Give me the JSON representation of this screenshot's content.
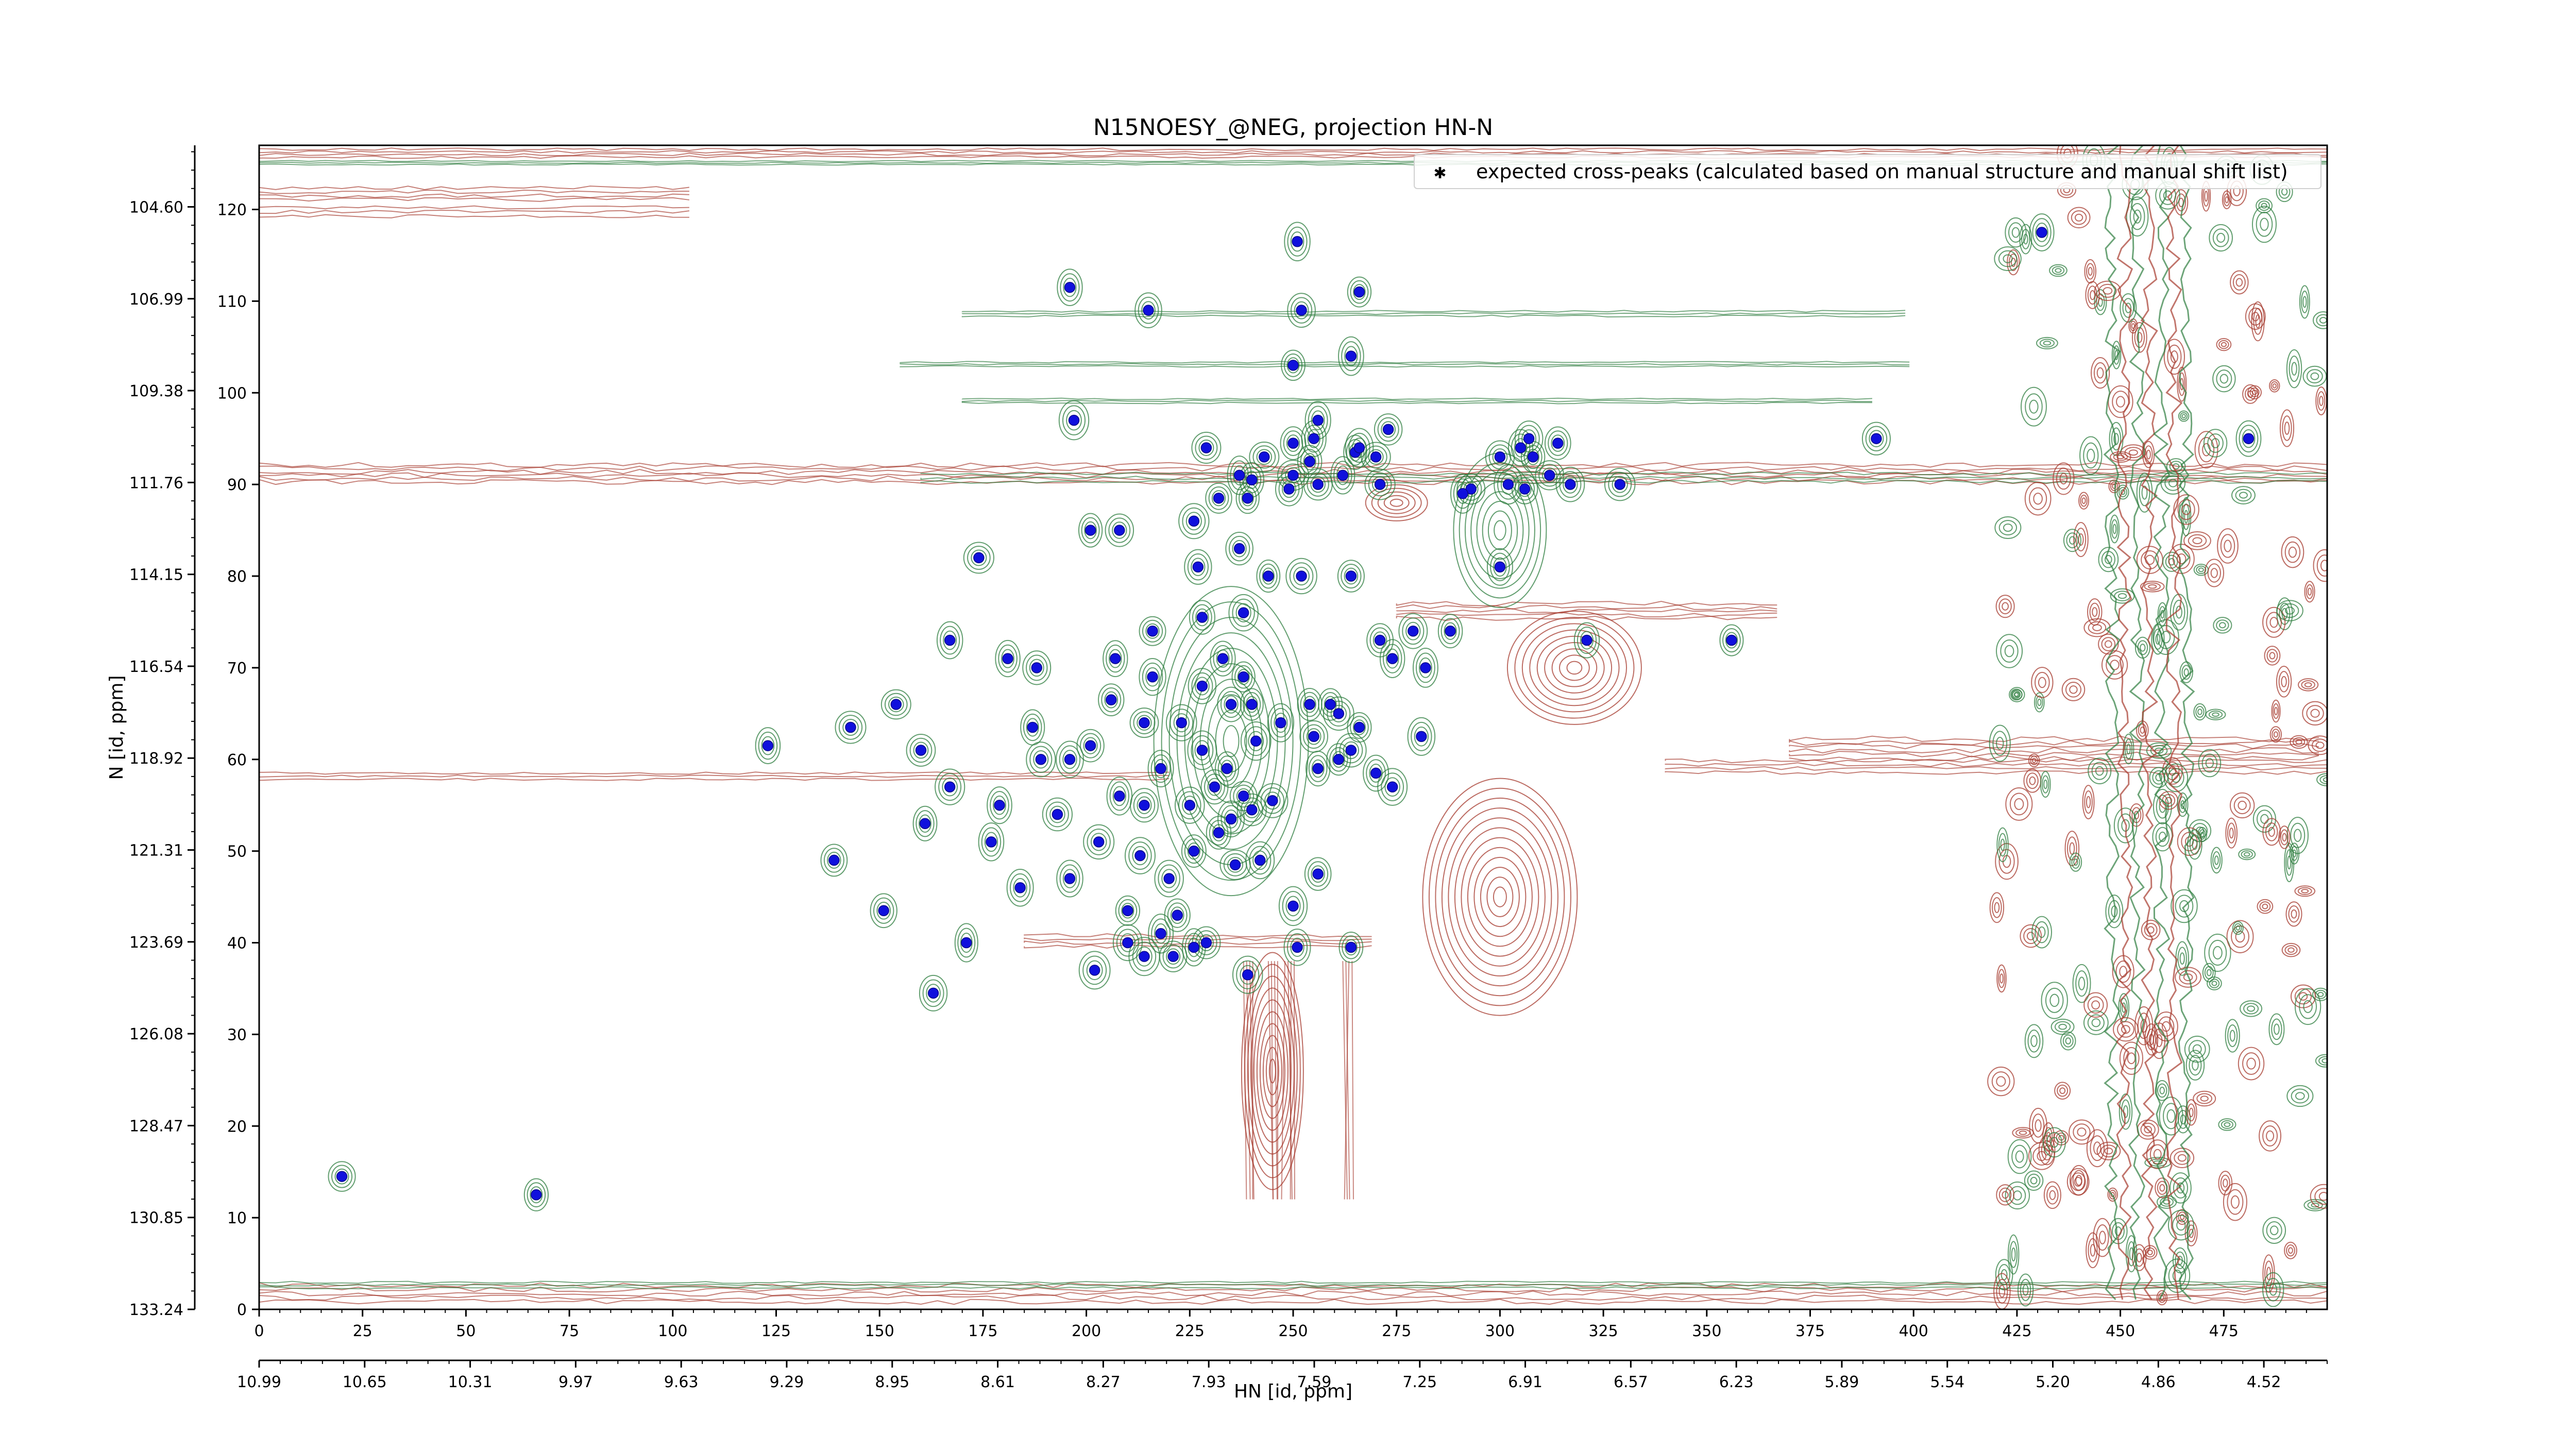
{
  "chart_data": {
    "type": "scatter",
    "title": "N15NOESY_@NEG, projection HN-N",
    "xlabel": "HN [id, ppm]",
    "ylabel": "N [id, ppm]",
    "xlim": [
      0,
      500
    ],
    "ylim": [
      0,
      127
    ],
    "x_ticks": [
      0,
      25,
      50,
      75,
      100,
      125,
      150,
      175,
      200,
      225,
      250,
      275,
      300,
      325,
      350,
      375,
      400,
      425,
      450,
      475
    ],
    "y_ticks": [
      0,
      10,
      20,
      30,
      40,
      50,
      60,
      70,
      80,
      90,
      100,
      110,
      120
    ],
    "x_ppm_ticks": [
      "10.99",
      "10.65",
      "10.31",
      "9.97",
      "9.63",
      "9.29",
      "8.95",
      "8.61",
      "8.27",
      "7.93",
      "7.59",
      "7.25",
      "6.91",
      "6.57",
      "6.23",
      "5.89",
      "5.54",
      "5.20",
      "4.86",
      "4.52"
    ],
    "y_ppm_ticks": [
      "133.24",
      "130.85",
      "128.47",
      "126.08",
      "123.69",
      "121.31",
      "118.92",
      "116.54",
      "114.15",
      "111.76",
      "109.38",
      "106.99",
      "104.60"
    ],
    "legend": {
      "position": "upper-right",
      "label": "expected cross-peaks (calculated based on manual structure and manual shift list)"
    },
    "colors": {
      "positive_contour": "#2e7d3f",
      "negative_contour": "#a63a2e",
      "marker": "#1010dd"
    },
    "series": [
      {
        "name": "expected cross-peaks (calculated based on manual structure and manual shift list)",
        "points": [
          [
            20,
            14.5
          ],
          [
            67,
            12.5
          ],
          [
            163,
            34.5
          ],
          [
            171,
            40
          ],
          [
            151,
            43.5
          ],
          [
            139,
            49
          ],
          [
            184,
            46
          ],
          [
            161,
            53
          ],
          [
            167,
            57
          ],
          [
            179,
            55
          ],
          [
            177,
            51
          ],
          [
            160,
            61
          ],
          [
            154,
            66
          ],
          [
            143,
            63.5
          ],
          [
            123,
            61.5
          ],
          [
            167,
            73
          ],
          [
            181,
            71
          ],
          [
            188,
            70
          ],
          [
            174,
            82
          ],
          [
            196,
            47
          ],
          [
            193,
            54
          ],
          [
            196,
            60
          ],
          [
            203,
            51
          ],
          [
            187,
            63.5
          ],
          [
            189,
            60
          ],
          [
            201,
            61.5
          ],
          [
            206,
            66.5
          ],
          [
            207,
            71
          ],
          [
            216,
            74
          ],
          [
            216,
            69
          ],
          [
            214,
            64
          ],
          [
            218,
            59
          ],
          [
            214,
            55
          ],
          [
            225,
            55
          ],
          [
            208,
            56
          ],
          [
            213,
            49.5
          ],
          [
            226,
            50
          ],
          [
            220,
            47
          ],
          [
            232,
            52
          ],
          [
            231,
            57
          ],
          [
            228,
            61
          ],
          [
            223,
            64
          ],
          [
            228,
            68
          ],
          [
            233,
            71
          ],
          [
            235,
            66
          ],
          [
            240,
            66
          ],
          [
            238,
            69
          ],
          [
            241,
            62
          ],
          [
            234,
            59
          ],
          [
            238,
            56
          ],
          [
            235,
            53.5
          ],
          [
            240,
            54.5
          ],
          [
            245,
            55.5
          ],
          [
            236,
            48.5
          ],
          [
            242,
            49
          ],
          [
            239,
            36.5
          ],
          [
            226,
            39.5
          ],
          [
            222,
            43
          ],
          [
            218,
            41
          ],
          [
            214,
            38.5
          ],
          [
            221,
            38.5
          ],
          [
            210,
            43.5
          ],
          [
            229,
            40
          ],
          [
            210,
            40
          ],
          [
            202,
            37
          ],
          [
            251,
            39.5
          ],
          [
            264,
            39.5
          ],
          [
            250,
            44
          ],
          [
            256,
            47.5
          ],
          [
            256,
            59
          ],
          [
            261,
            60
          ],
          [
            255,
            62.5
          ],
          [
            247,
            64
          ],
          [
            254,
            66
          ],
          [
            259,
            66
          ],
          [
            261,
            65
          ],
          [
            266,
            63.5
          ],
          [
            270,
            58.5
          ],
          [
            274,
            57
          ],
          [
            281,
            62.5
          ],
          [
            264,
            61
          ],
          [
            264,
            80
          ],
          [
            252,
            80
          ],
          [
            244,
            80
          ],
          [
            227,
            81
          ],
          [
            237,
            83
          ],
          [
            238,
            76
          ],
          [
            228,
            75.5
          ],
          [
            226,
            86
          ],
          [
            232,
            88.5
          ],
          [
            239,
            88.5
          ],
          [
            237,
            91
          ],
          [
            229,
            94
          ],
          [
            240,
            90.5
          ],
          [
            249,
            89.5
          ],
          [
            243,
            93
          ],
          [
            250,
            91
          ],
          [
            250,
            94.5
          ],
          [
            256,
            90
          ],
          [
            254,
            92.5
          ],
          [
            255,
            95
          ],
          [
            256,
            97
          ],
          [
            262,
            91
          ],
          [
            265,
            93.5
          ],
          [
            270,
            93
          ],
          [
            266,
            94
          ],
          [
            271,
            90
          ],
          [
            273,
            96
          ],
          [
            250,
            103
          ],
          [
            252,
            109
          ],
          [
            251,
            116.5
          ],
          [
            266,
            111
          ],
          [
            264,
            104
          ],
          [
            215,
            109
          ],
          [
            196,
            111.5
          ],
          [
            197,
            97
          ],
          [
            201,
            85
          ],
          [
            208,
            85
          ],
          [
            274,
            71
          ],
          [
            271,
            73
          ],
          [
            279,
            74
          ],
          [
            282,
            70
          ],
          [
            288,
            74
          ],
          [
            293,
            89.5
          ],
          [
            291,
            89
          ],
          [
            300,
            93
          ],
          [
            302,
            90
          ],
          [
            305,
            94
          ],
          [
            306,
            89.5
          ],
          [
            308,
            93
          ],
          [
            312,
            91
          ],
          [
            314,
            94.5
          ],
          [
            317,
            90
          ],
          [
            307,
            95
          ],
          [
            300,
            81
          ],
          [
            329,
            90
          ],
          [
            321,
            73
          ],
          [
            356,
            73
          ],
          [
            391,
            95
          ],
          [
            431,
            117.5
          ],
          [
            481,
            95
          ]
        ]
      }
    ]
  }
}
